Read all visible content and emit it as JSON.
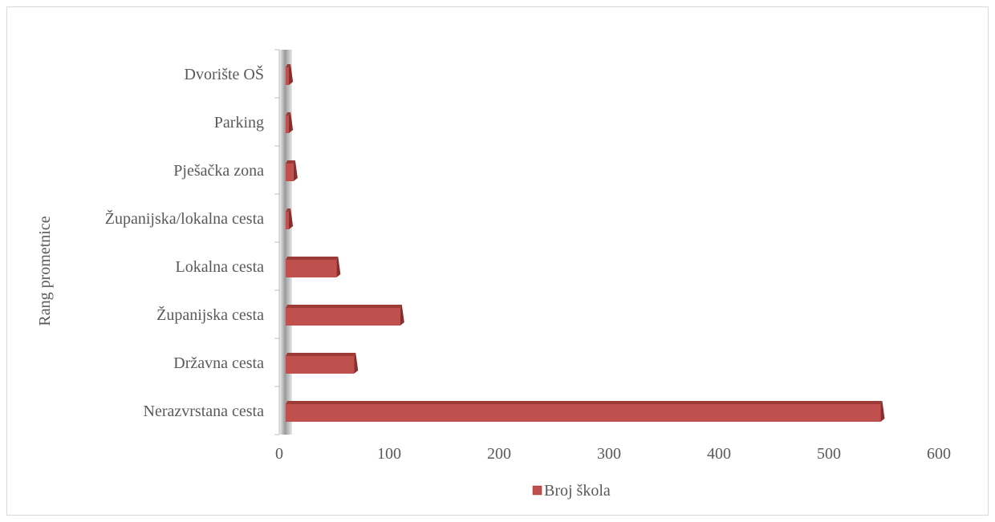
{
  "chart_data": {
    "type": "bar",
    "orientation": "horizontal",
    "style": "3d-clustered",
    "categories": [
      "Nerazvrstana cesta",
      "Državna cesta",
      "Županijska cesta",
      "Lokalna cesta",
      "Županijska/lokalna cesta",
      "Pješačka zona",
      "Parking",
      "Dvorište OŠ"
    ],
    "series": [
      {
        "name": "Broj škola",
        "color": "#c0504d",
        "values": [
          547,
          68,
          110,
          52,
          5,
          13,
          2,
          3
        ]
      }
    ],
    "xlabel": "",
    "ylabel": "Rang prometnice",
    "xlim": [
      0,
      600
    ],
    "xticks": [
      0,
      100,
      200,
      300,
      400,
      500,
      600
    ],
    "grid": false,
    "legend": "bottom"
  }
}
